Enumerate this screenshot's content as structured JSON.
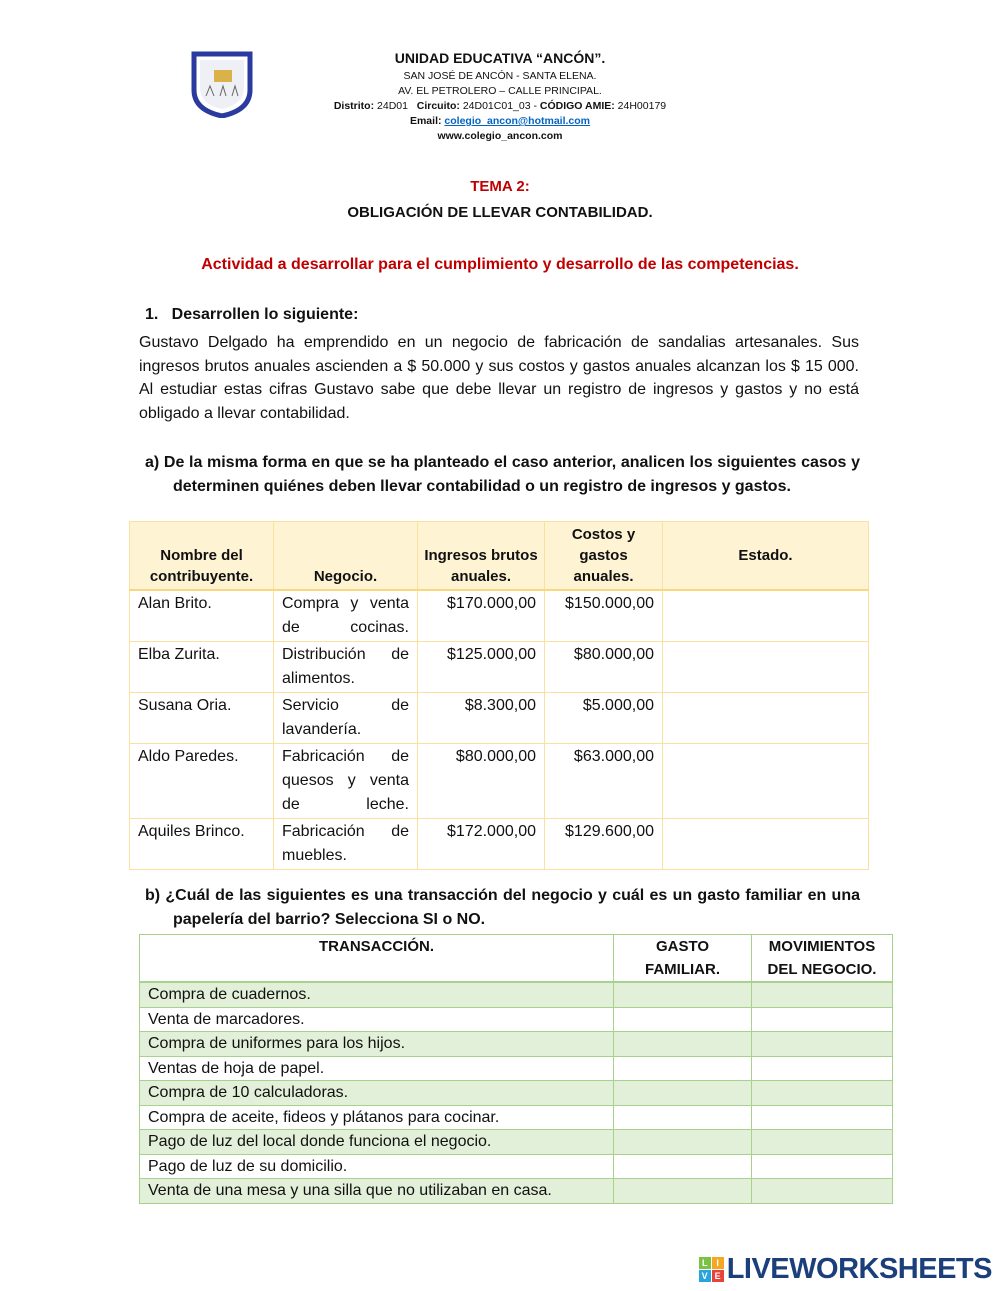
{
  "header": {
    "school": "UNIDAD EDUCATIVA “ANCÓN”.",
    "line1": "SAN JOSÉ DE ANCÓN - SANTA ELENA.",
    "line2": "AV. EL PETROLERO – CALLE PRINCIPAL.",
    "distrito_label": "Distrito:",
    "distrito": "24D01",
    "circuito_label": "Circuito:",
    "circuito": "24D01C01_03 -",
    "amie_label": "CÓDIGO AMIE:",
    "amie": "24H00179",
    "email_label": "Email:",
    "email": "colegio_ancon@hotmail.com",
    "web": "www.colegio_ancon.com",
    "logo_text": "UNIDAD EDUCATIVA ANCÓN"
  },
  "topic": {
    "number": "TEMA 2:",
    "title": "OBLIGACIÓN DE LLEVAR CONTABILIDAD.",
    "activity": "Actividad a desarrollar para el cumplimiento y desarrollo de las competencias."
  },
  "section1": {
    "heading": "1.   Desarrollen lo siguiente:",
    "text": "Gustavo Delgado ha emprendido en un negocio de fabricación de sandalias artesanales. Sus ingresos brutos anuales ascienden a $ 50.000 y sus costos y gastos anuales alcanzan los $ 15 000. Al estudiar estas cifras Gustavo sabe que debe llevar un registro de ingresos y gastos y no está obligado a llevar contabilidad."
  },
  "question_a": "a)   De la misma forma en que se ha planteado el caso anterior, analicen los siguientes casos y determinen quiénes deben llevar contabilidad o un registro de ingresos y gastos.",
  "table_a": {
    "headers": [
      "Nombre del contribuyente.",
      "Negocio.",
      "Ingresos brutos anuales.",
      "Costos y gastos anuales.",
      "Estado."
    ],
    "rows": [
      {
        "name": "Alan Brito.",
        "business": "Compra y venta de cocinas.",
        "income": "$170.000,00",
        "costs": "$150.000,00",
        "status": ""
      },
      {
        "name": "Elba Zurita.",
        "business": "Distribución de alimentos.",
        "income": "$125.000,00",
        "costs": "$80.000,00",
        "status": ""
      },
      {
        "name": "Susana Oria.",
        "business": "Servicio de lavandería.",
        "income": "$8.300,00",
        "costs": "$5.000,00",
        "status": ""
      },
      {
        "name": "Aldo Paredes.",
        "business": "Fabricación de quesos y venta de leche.",
        "income": "$80.000,00",
        "costs": "$63.000,00",
        "status": ""
      },
      {
        "name": "Aquiles Brinco.",
        "business": "Fabricación de muebles.",
        "income": "$172.000,00",
        "costs": "$129.600,00",
        "status": ""
      }
    ]
  },
  "question_b": "b)   ¿Cuál de las siguientes es una transacción del negocio y cuál es un gasto familiar en una papelería del barrio? Selecciona SI o NO.",
  "table_b": {
    "headers": [
      "TRANSACCIÓN.",
      "GASTO FAMILIAR.",
      "MOVIMIENTOS DEL NEGOCIO."
    ],
    "rows": [
      "Compra de cuadernos.",
      "Venta de marcadores.",
      "Compra de uniformes para los hijos.",
      "Ventas de hoja de papel.",
      "Compra de 10 calculadoras.",
      "Compra de aceite, fideos y plátanos para cocinar.",
      "Pago de luz del local donde funciona el negocio.",
      "Pago de luz de su domicilio.",
      "Venta de una mesa y una silla que no utilizaban en casa."
    ]
  },
  "branding": {
    "logo_letters": [
      "L",
      "I",
      "V",
      "E"
    ],
    "text": "LIVEWORKSHEETS"
  },
  "colors": {
    "red": "#c00000",
    "table_a_header": "#fef4d4",
    "table_b_alt": "#e2efd9",
    "link": "#0563c1",
    "brand": "#1b3f7a"
  }
}
